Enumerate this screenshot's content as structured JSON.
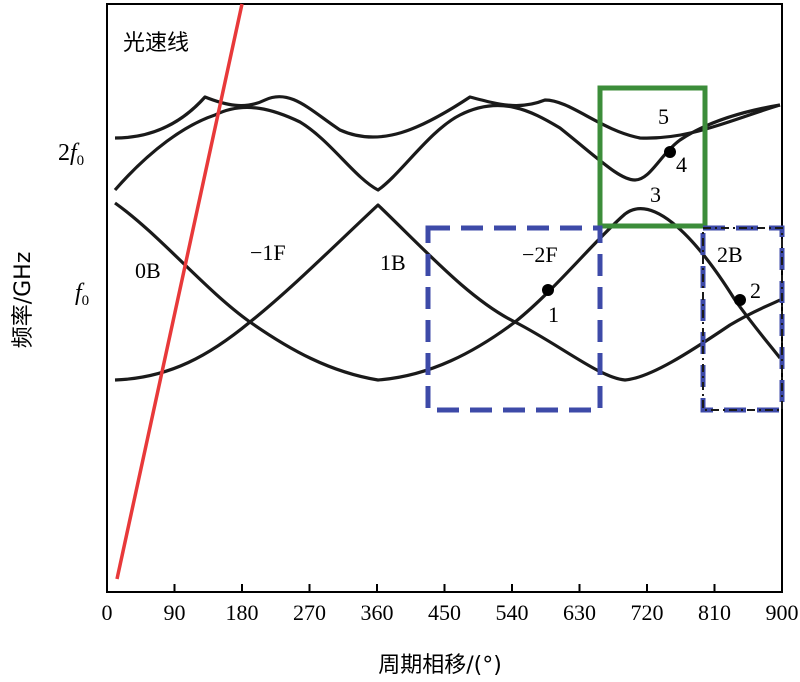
{
  "chart_data": {
    "type": "line",
    "x_ticks": [
      "0",
      "90",
      "180",
      "270",
      "360",
      "450",
      "540",
      "630",
      "720",
      "810",
      "900"
    ],
    "xlabel": "周期相移/(°)",
    "ylabel": "频率/GHz",
    "xlim": [
      0,
      900
    ],
    "y_ticks": [
      "2f0",
      "f0"
    ],
    "light_line_label": "光速线",
    "band_labels": {
      "b0": "0B",
      "f1": "−1F",
      "b1": "1B",
      "f2": "−2F",
      "b2": "2B"
    },
    "point_labels": [
      "1",
      "2",
      "3",
      "4",
      "5"
    ],
    "colors": {
      "curves": "#1a1a1a",
      "light_line": "#e8393a",
      "box_solid_green": "#3c8d3a",
      "box_dashed_blue": "#3d4aa8",
      "box_dashdot": "#1a1a1a"
    }
  }
}
